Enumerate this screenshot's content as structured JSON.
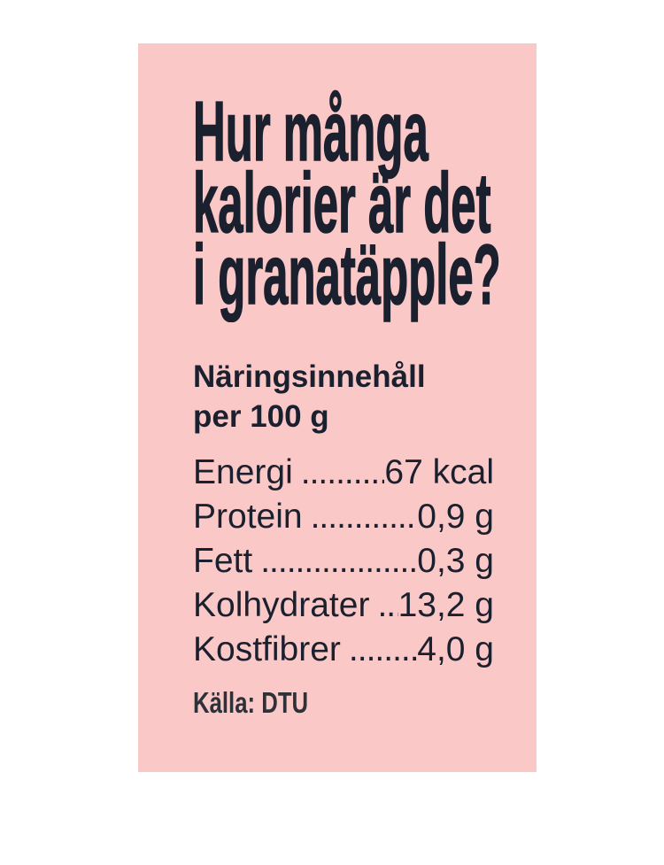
{
  "theme": {
    "page_bg": "#ffffff",
    "card_bg": "#f9c8c7",
    "ink": "#1a202e",
    "source_ink": "#2f3138"
  },
  "card": {
    "headline": {
      "lines": [
        "Hur många",
        "kalorier är det",
        "i granatäpple?"
      ]
    },
    "nutrition": {
      "heading": {
        "line1": "Näringsinnehåll",
        "line2": "per 100 g"
      },
      "rows": [
        {
          "label": "Energi",
          "leader": ".............",
          "value": "67 kcal"
        },
        {
          "label": "Protein",
          "leader": "................",
          "value": "0,9 g"
        },
        {
          "label": "Fett",
          "leader": ".....................",
          "value": "0,3 g"
        },
        {
          "label": "Kolhydrater",
          "leader": ".....",
          "value": "13,2 g"
        },
        {
          "label": "Kostfibrer",
          "leader": "..........",
          "value": "4,0 g"
        }
      ]
    },
    "source": {
      "text": "Källa: DTU"
    }
  }
}
